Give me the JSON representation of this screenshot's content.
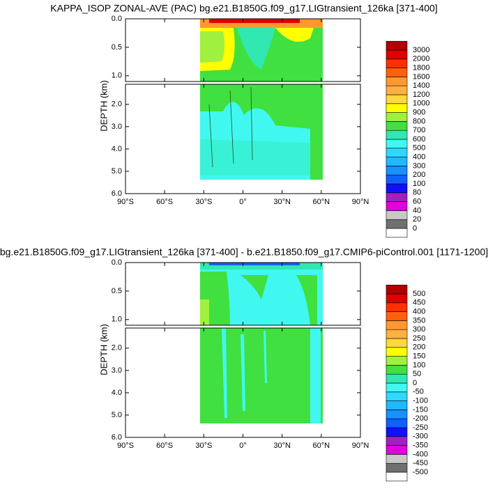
{
  "chart_data": [
    {
      "type": "contour",
      "title": "KAPPA_ISOP ZONAL-AVE (PAC) bg.e21.B1850G.f09_g17.LIGtransient_126ka [371-400]",
      "y_label": "DEPTH (km)",
      "xlim": [
        -90,
        90
      ],
      "xticks": [
        {
          "value": -90,
          "label": "90°S"
        },
        {
          "value": -60,
          "label": "60°S"
        },
        {
          "value": -30,
          "label": "30°S"
        },
        {
          "value": 0,
          "label": "0°"
        },
        {
          "value": 30,
          "label": "30°N"
        },
        {
          "value": 60,
          "label": "60°N"
        },
        {
          "value": 90,
          "label": "90°N"
        }
      ],
      "panels": [
        {
          "ylim": [
            0,
            1.1
          ],
          "yticks": [
            {
              "value": 0,
              "label": "0.0"
            },
            0.5,
            {
              "value": 1,
              "label": "1.0"
            }
          ]
        },
        {
          "ylim": [
            1.1,
            6
          ],
          "yticks": [
            {
              "value": 2,
              "label": "2.0"
            },
            {
              "value": 3,
              "label": "3.0"
            },
            {
              "value": 4,
              "label": "4.0"
            },
            {
              "value": 5,
              "label": "5.0"
            },
            {
              "value": 6,
              "label": "6.0"
            }
          ]
        }
      ],
      "levels": [
        0,
        20,
        40,
        60,
        80,
        100,
        200,
        300,
        400,
        500,
        600,
        700,
        800,
        900,
        1000,
        1200,
        1400,
        1600,
        1800,
        2000,
        3000
      ],
      "colors": [
        "#ffffff",
        "#707070",
        "#c8c8c8",
        "#e000e0",
        "#a020c0",
        "#1010ff",
        "#1060ff",
        "#1890ff",
        "#20b8ff",
        "#30d8ff",
        "#40f8f0",
        "#30e8b0",
        "#40e040",
        "#a0f040",
        "#ffff00",
        "#ffd840",
        "#ffb040",
        "#ff9830",
        "#ff6010",
        "#ff3000",
        "#e00000",
        "#b00000"
      ]
    },
    {
      "type": "contour",
      "title": "bg.e21.B1850G.f09_g17.LIGtransient_126ka [371-400] - b.e21.B1850.f09_g17.CMIP6-piControl.001 [1171-1200]",
      "y_label": "DEPTH (km)",
      "xlim": [
        -90,
        90
      ],
      "xticks": [
        {
          "value": -90,
          "label": "90°S"
        },
        {
          "value": -60,
          "label": "60°S"
        },
        {
          "value": -30,
          "label": "30°S"
        },
        {
          "value": 0,
          "label": "0°"
        },
        {
          "value": 30,
          "label": "30°N"
        },
        {
          "value": 60,
          "label": "60°N"
        },
        {
          "value": 90,
          "label": "90°N"
        }
      ],
      "panels": [
        {
          "ylim": [
            0,
            1.1
          ],
          "yticks": [
            {
              "value": 0,
              "label": "0.0"
            },
            0.5,
            {
              "value": 1,
              "label": "1.0"
            }
          ]
        },
        {
          "ylim": [
            1.1,
            6
          ],
          "yticks": [
            {
              "value": 2,
              "label": "2.0"
            },
            {
              "value": 3,
              "label": "3.0"
            },
            {
              "value": 4,
              "label": "4.0"
            },
            {
              "value": 5,
              "label": "5.0"
            },
            {
              "value": 6,
              "label": "6.0"
            }
          ]
        }
      ],
      "levels": [
        -500,
        -450,
        -400,
        -350,
        -300,
        -250,
        -200,
        -150,
        -100,
        -50,
        0,
        50,
        100,
        150,
        200,
        250,
        300,
        350,
        400,
        450,
        500
      ],
      "colors": [
        "#ffffff",
        "#707070",
        "#c8c8c8",
        "#e000e0",
        "#a020c0",
        "#1010ff",
        "#1060ff",
        "#1890ff",
        "#20b8ff",
        "#30d8ff",
        "#40f8f0",
        "#30e8b0",
        "#40e040",
        "#a0f040",
        "#ffff00",
        "#ffd840",
        "#ffb040",
        "#ff9830",
        "#ff6010",
        "#ff3000",
        "#e00000",
        "#b00000"
      ]
    }
  ]
}
